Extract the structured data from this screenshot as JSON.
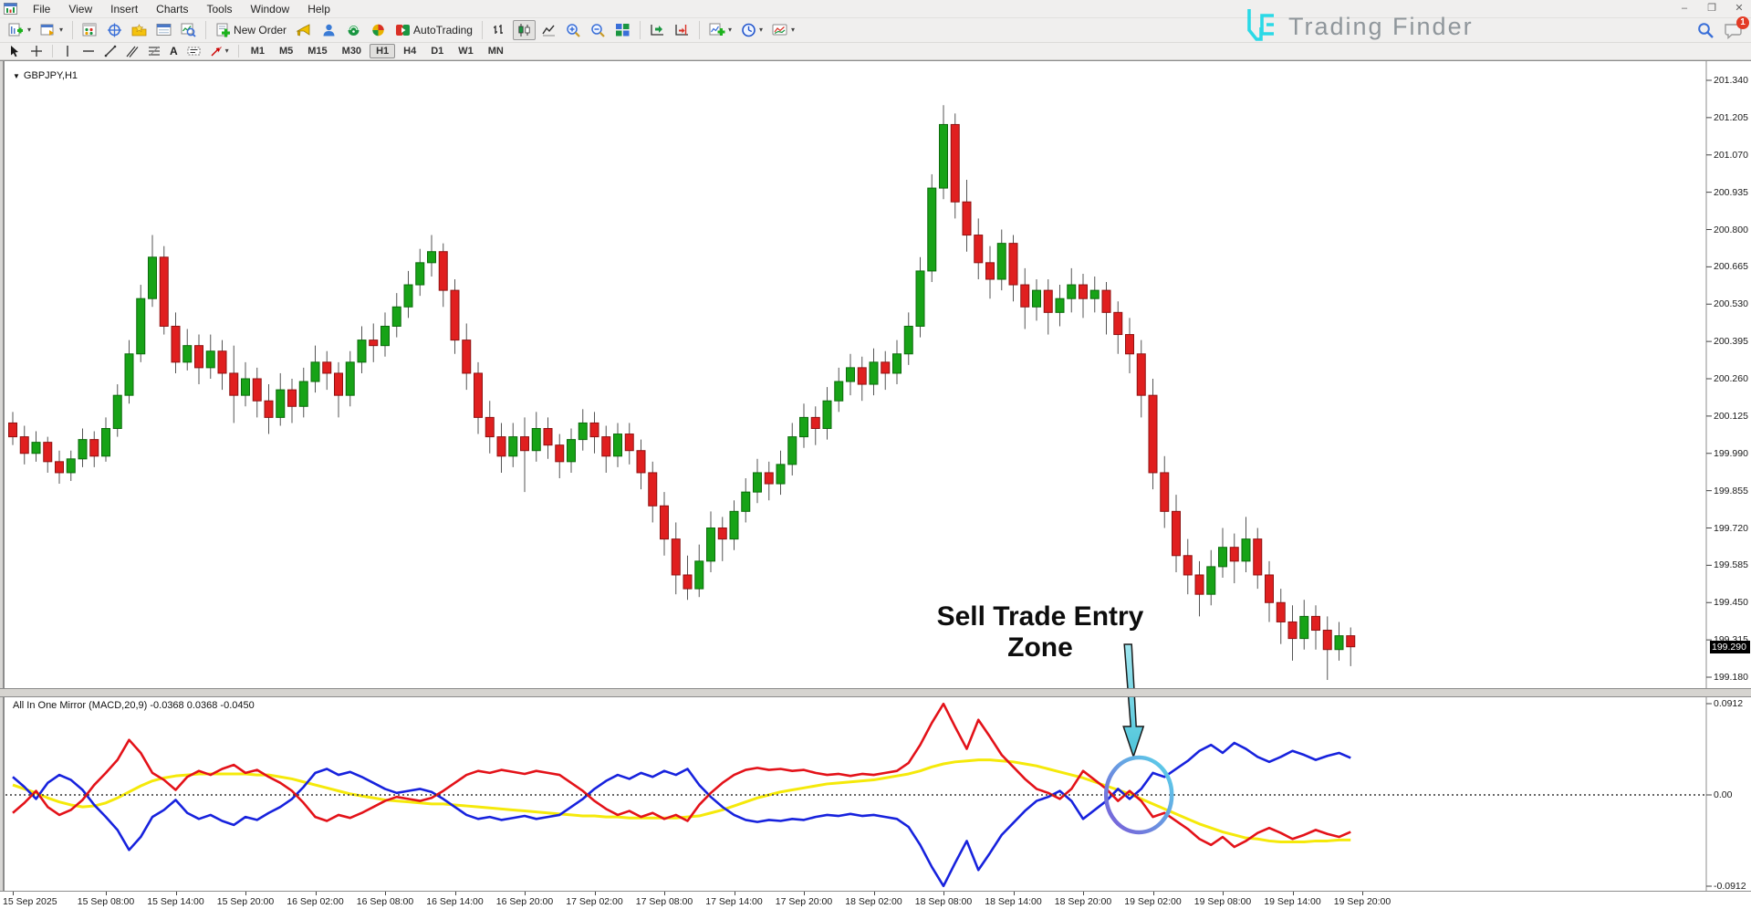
{
  "menu": {
    "items": [
      "File",
      "View",
      "Insert",
      "Charts",
      "Tools",
      "Window",
      "Help"
    ]
  },
  "window_controls": {
    "minimize": "–",
    "restore": "❐",
    "close": "✕"
  },
  "glyphs": {
    "dropdown": "▾",
    "symbol_marker": "▼",
    "text_tool": "A"
  },
  "toolbar": {
    "new_order": "New Order",
    "autotrading": "AutoTrading"
  },
  "timeframes": {
    "items": [
      "M1",
      "M5",
      "M15",
      "M30",
      "H1",
      "H4",
      "D1",
      "W1",
      "MN"
    ],
    "active": "H1"
  },
  "watermark": {
    "brand": "Trading Finder"
  },
  "notifications": {
    "badge": "1"
  },
  "chart": {
    "symbol_label": "GBPJPY,H1",
    "indicator_label": "All In One Mirror (MACD,20,9) -0.0368 0.0368 -0.0450",
    "current_price": "199.290",
    "annotation_text": "Sell Trade Entry Zone"
  },
  "colors": {
    "bull": "#17a317",
    "bull_border": "#0c6b0c",
    "bear": "#e01f1f",
    "bear_border": "#8f1212",
    "wick": "#555555",
    "macd_red": "#e31219",
    "macd_blue": "#1722dd",
    "signal_yellow": "#f5e90a",
    "arrow_cyan": "#74d6e6",
    "circle_purple": "#7a58d8",
    "circle_cyan": "#58d8ea",
    "badge_red": "#e33a24",
    "brand_cyan": "#2ad9e6"
  },
  "chart_data": {
    "type": "candlestick",
    "symbol": "GBPJPY",
    "timeframe": "H1",
    "price_panel": {
      "visible_price_range": [
        199.14,
        201.41
      ],
      "ohlc": [
        [
          200.1,
          200.14,
          200.02,
          200.05
        ],
        [
          200.05,
          200.09,
          199.95,
          199.99
        ],
        [
          199.99,
          200.07,
          199.96,
          200.03
        ],
        [
          200.03,
          200.05,
          199.92,
          199.96
        ],
        [
          199.96,
          200.0,
          199.88,
          199.92
        ],
        [
          199.92,
          200.0,
          199.89,
          199.97
        ],
        [
          199.97,
          200.08,
          199.94,
          200.04
        ],
        [
          200.04,
          200.07,
          199.94,
          199.98
        ],
        [
          199.98,
          200.12,
          199.96,
          200.08
        ],
        [
          200.08,
          200.24,
          200.05,
          200.2
        ],
        [
          200.2,
          200.4,
          200.17,
          200.35
        ],
        [
          200.35,
          200.6,
          200.32,
          200.55
        ],
        [
          200.55,
          200.78,
          200.52,
          200.7
        ],
        [
          200.7,
          200.74,
          200.42,
          200.45
        ],
        [
          200.45,
          200.5,
          200.28,
          200.32
        ],
        [
          200.32,
          200.44,
          200.29,
          200.38
        ],
        [
          200.38,
          200.42,
          200.24,
          200.3
        ],
        [
          200.3,
          200.42,
          200.26,
          200.36
        ],
        [
          200.36,
          200.4,
          200.22,
          200.28
        ],
        [
          200.28,
          200.38,
          200.1,
          200.2
        ],
        [
          200.2,
          200.32,
          200.16,
          200.26
        ],
        [
          200.26,
          200.3,
          200.12,
          200.18
        ],
        [
          200.18,
          200.24,
          200.06,
          200.12
        ],
        [
          200.12,
          200.28,
          200.09,
          200.22
        ],
        [
          200.22,
          200.26,
          200.1,
          200.16
        ],
        [
          200.16,
          200.3,
          200.12,
          200.25
        ],
        [
          200.25,
          200.38,
          200.21,
          200.32
        ],
        [
          200.32,
          200.36,
          200.22,
          200.28
        ],
        [
          200.28,
          200.32,
          200.12,
          200.2
        ],
        [
          200.2,
          200.36,
          200.16,
          200.32
        ],
        [
          200.32,
          200.45,
          200.28,
          200.4
        ],
        [
          200.4,
          200.46,
          200.32,
          200.38
        ],
        [
          200.38,
          200.5,
          200.34,
          200.45
        ],
        [
          200.45,
          200.57,
          200.41,
          200.52
        ],
        [
          200.52,
          200.65,
          200.48,
          200.6
        ],
        [
          200.6,
          200.73,
          200.56,
          200.68
        ],
        [
          200.68,
          200.78,
          200.63,
          200.72
        ],
        [
          200.72,
          200.75,
          200.52,
          200.58
        ],
        [
          200.58,
          200.62,
          200.35,
          200.4
        ],
        [
          200.4,
          200.46,
          200.22,
          200.28
        ],
        [
          200.28,
          200.32,
          200.06,
          200.12
        ],
        [
          200.12,
          200.18,
          199.99,
          200.05
        ],
        [
          200.05,
          200.1,
          199.92,
          199.98
        ],
        [
          199.98,
          200.1,
          199.94,
          200.05
        ],
        [
          200.05,
          200.12,
          199.85,
          200.0
        ],
        [
          200.0,
          200.14,
          199.96,
          200.08
        ],
        [
          200.08,
          200.12,
          199.97,
          200.02
        ],
        [
          200.02,
          200.06,
          199.9,
          199.96
        ],
        [
          199.96,
          200.08,
          199.92,
          200.04
        ],
        [
          200.04,
          200.15,
          200.0,
          200.1
        ],
        [
          200.1,
          200.14,
          199.99,
          200.05
        ],
        [
          200.05,
          200.09,
          199.92,
          199.98
        ],
        [
          199.98,
          200.1,
          199.94,
          200.06
        ],
        [
          200.06,
          200.1,
          199.95,
          200.0
        ],
        [
          200.0,
          200.04,
          199.86,
          199.92
        ],
        [
          199.92,
          199.96,
          199.74,
          199.8
        ],
        [
          199.8,
          199.85,
          199.62,
          199.68
        ],
        [
          199.68,
          199.74,
          199.48,
          199.55
        ],
        [
          199.55,
          199.62,
          199.46,
          199.5
        ],
        [
          199.5,
          199.66,
          199.47,
          199.6
        ],
        [
          199.6,
          199.78,
          199.56,
          199.72
        ],
        [
          199.72,
          199.76,
          199.6,
          199.68
        ],
        [
          199.68,
          199.82,
          199.64,
          199.78
        ],
        [
          199.78,
          199.9,
          199.74,
          199.85
        ],
        [
          199.85,
          199.97,
          199.81,
          199.92
        ],
        [
          199.92,
          199.96,
          199.82,
          199.88
        ],
        [
          199.88,
          200.0,
          199.84,
          199.95
        ],
        [
          199.95,
          200.1,
          199.91,
          200.05
        ],
        [
          200.05,
          200.17,
          200.01,
          200.12
        ],
        [
          200.12,
          200.16,
          200.02,
          200.08
        ],
        [
          200.08,
          200.23,
          200.04,
          200.18
        ],
        [
          200.18,
          200.3,
          200.14,
          200.25
        ],
        [
          200.25,
          200.35,
          200.2,
          200.3
        ],
        [
          200.3,
          200.34,
          200.18,
          200.24
        ],
        [
          200.24,
          200.37,
          200.2,
          200.32
        ],
        [
          200.32,
          200.36,
          200.22,
          200.28
        ],
        [
          200.28,
          200.4,
          200.24,
          200.35
        ],
        [
          200.35,
          200.5,
          200.31,
          200.45
        ],
        [
          200.45,
          200.7,
          200.41,
          200.65
        ],
        [
          200.65,
          201.0,
          200.61,
          200.95
        ],
        [
          200.95,
          201.25,
          200.91,
          201.18
        ],
        [
          201.18,
          201.22,
          200.84,
          200.9
        ],
        [
          200.9,
          200.98,
          200.72,
          200.78
        ],
        [
          200.78,
          200.84,
          200.62,
          200.68
        ],
        [
          200.68,
          200.74,
          200.55,
          200.62
        ],
        [
          200.62,
          200.8,
          200.58,
          200.75
        ],
        [
          200.75,
          200.78,
          200.54,
          200.6
        ],
        [
          200.6,
          200.66,
          200.44,
          200.52
        ],
        [
          200.52,
          200.62,
          200.47,
          200.58
        ],
        [
          200.58,
          200.62,
          200.42,
          200.5
        ],
        [
          200.5,
          200.6,
          200.45,
          200.55
        ],
        [
          200.55,
          200.66,
          200.5,
          200.6
        ],
        [
          200.6,
          200.64,
          200.48,
          200.55
        ],
        [
          200.55,
          200.63,
          200.5,
          200.58
        ],
        [
          200.58,
          200.61,
          200.42,
          200.5
        ],
        [
          200.5,
          200.54,
          200.35,
          200.42
        ],
        [
          200.42,
          200.48,
          200.28,
          200.35
        ],
        [
          200.35,
          200.4,
          200.12,
          200.2
        ],
        [
          200.2,
          200.26,
          199.86,
          199.92
        ],
        [
          199.92,
          199.98,
          199.72,
          199.78
        ],
        [
          199.78,
          199.84,
          199.56,
          199.62
        ],
        [
          199.62,
          199.68,
          199.48,
          199.55
        ],
        [
          199.55,
          199.6,
          199.4,
          199.48
        ],
        [
          199.48,
          199.64,
          199.44,
          199.58
        ],
        [
          199.58,
          199.72,
          199.54,
          199.65
        ],
        [
          199.65,
          199.7,
          199.52,
          199.6
        ],
        [
          199.6,
          199.76,
          199.56,
          199.68
        ],
        [
          199.68,
          199.72,
          199.5,
          199.55
        ],
        [
          199.55,
          199.6,
          199.38,
          199.45
        ],
        [
          199.45,
          199.5,
          199.3,
          199.38
        ],
        [
          199.38,
          199.44,
          199.24,
          199.32
        ],
        [
          199.32,
          199.46,
          199.28,
          199.4
        ],
        [
          199.4,
          199.44,
          199.28,
          199.35
        ],
        [
          199.35,
          199.4,
          199.17,
          199.28
        ],
        [
          199.28,
          199.38,
          199.24,
          199.33
        ],
        [
          199.33,
          199.36,
          199.22,
          199.29
        ]
      ]
    },
    "price_axis": {
      "ticks": [
        "201.340",
        "201.205",
        "201.070",
        "200.935",
        "200.800",
        "200.665",
        "200.530",
        "200.395",
        "200.260",
        "200.125",
        "199.990",
        "199.855",
        "199.720",
        "199.585",
        "199.450",
        "199.315",
        "199.180"
      ],
      "step": 0.135,
      "current": "199.290"
    },
    "time_axis": {
      "labels": [
        {
          "i": 0,
          "t": "15 Sep 2025"
        },
        {
          "i": 8,
          "t": "15 Sep 08:00"
        },
        {
          "i": 14,
          "t": "15 Sep 14:00"
        },
        {
          "i": 20,
          "t": "15 Sep 20:00"
        },
        {
          "i": 26,
          "t": "16 Sep 02:00"
        },
        {
          "i": 32,
          "t": "16 Sep 08:00"
        },
        {
          "i": 38,
          "t": "16 Sep 14:00"
        },
        {
          "i": 44,
          "t": "16 Sep 20:00"
        },
        {
          "i": 50,
          "t": "17 Sep 02:00"
        },
        {
          "i": 56,
          "t": "17 Sep 08:00"
        },
        {
          "i": 62,
          "t": "17 Sep 14:00"
        },
        {
          "i": 68,
          "t": "17 Sep 20:00"
        },
        {
          "i": 74,
          "t": "18 Sep 02:00"
        },
        {
          "i": 80,
          "t": "18 Sep 08:00"
        },
        {
          "i": 86,
          "t": "18 Sep 14:00"
        },
        {
          "i": 92,
          "t": "18 Sep 20:00"
        },
        {
          "i": 98,
          "t": "19 Sep 02:00"
        },
        {
          "i": 104,
          "t": "19 Sep 08:00"
        },
        {
          "i": 110,
          "t": "19 Sep 14:00"
        },
        {
          "i": 116,
          "t": "19 Sep 20:00"
        }
      ]
    },
    "indicator_panel": {
      "title": "All In One Mirror (MACD,20,9)",
      "current_values": [
        -0.0368,
        0.0368,
        -0.045
      ],
      "ylim": [
        -0.0912,
        0.0912
      ],
      "zero_line": "dotted",
      "axis_ticks": [
        {
          "v": 0.0912,
          "t": "0.0912"
        },
        {
          "v": 0,
          "t": "0.00"
        },
        {
          "v": -0.0912,
          "t": "-0.0912"
        }
      ],
      "series": [
        {
          "name": "macd_mirror_red",
          "color": "#e31219",
          "values": [
            -0.018,
            -0.008,
            0.004,
            -0.012,
            -0.02,
            -0.015,
            -0.005,
            0.01,
            0.022,
            0.035,
            0.055,
            0.042,
            0.022,
            0.015,
            0.005,
            0.018,
            0.024,
            0.02,
            0.026,
            0.03,
            0.022,
            0.025,
            0.018,
            0.012,
            0.004,
            -0.008,
            -0.022,
            -0.026,
            -0.02,
            -0.023,
            -0.018,
            -0.012,
            -0.006,
            -0.002,
            -0.004,
            -0.006,
            -0.003,
            0.004,
            0.012,
            0.02,
            0.024,
            0.022,
            0.025,
            0.023,
            0.021,
            0.024,
            0.022,
            0.02,
            0.012,
            0.004,
            -0.006,
            -0.014,
            -0.02,
            -0.016,
            -0.022,
            -0.018,
            -0.024,
            -0.02,
            -0.026,
            -0.01,
            0.002,
            0.012,
            0.02,
            0.025,
            0.027,
            0.025,
            0.026,
            0.024,
            0.025,
            0.022,
            0.02,
            0.021,
            0.019,
            0.021,
            0.02,
            0.022,
            0.024,
            0.032,
            0.05,
            0.072,
            0.091,
            0.068,
            0.046,
            0.075,
            0.058,
            0.04,
            0.028,
            0.016,
            0.006,
            0.002,
            -0.004,
            0.006,
            0.024,
            0.015,
            0.006,
            -0.006,
            0.004,
            -0.006,
            -0.022,
            -0.018,
            -0.026,
            -0.034,
            -0.044,
            -0.05,
            -0.042,
            -0.052,
            -0.046,
            -0.038,
            -0.033,
            -0.038,
            -0.044,
            -0.04,
            -0.035,
            -0.039,
            -0.042,
            -0.037
          ]
        },
        {
          "name": "macd_mirror_blue",
          "color": "#1722dd",
          "mirror_of": "macd_mirror_red"
        },
        {
          "name": "signal_yellow",
          "color": "#f5e90a",
          "values": [
            0.01,
            0.006,
            0.002,
            -0.003,
            -0.007,
            -0.01,
            -0.012,
            -0.011,
            -0.008,
            -0.003,
            0.003,
            0.009,
            0.014,
            0.017,
            0.019,
            0.02,
            0.021,
            0.021,
            0.021,
            0.021,
            0.021,
            0.02,
            0.02,
            0.018,
            0.016,
            0.013,
            0.01,
            0.007,
            0.004,
            0.001,
            -0.001,
            -0.003,
            -0.005,
            -0.006,
            -0.007,
            -0.008,
            -0.009,
            -0.009,
            -0.01,
            -0.011,
            -0.012,
            -0.013,
            -0.014,
            -0.015,
            -0.016,
            -0.017,
            -0.018,
            -0.019,
            -0.02,
            -0.021,
            -0.021,
            -0.022,
            -0.022,
            -0.023,
            -0.023,
            -0.023,
            -0.023,
            -0.023,
            -0.022,
            -0.021,
            -0.018,
            -0.015,
            -0.011,
            -0.007,
            -0.003,
            0.0,
            0.003,
            0.005,
            0.007,
            0.009,
            0.011,
            0.012,
            0.013,
            0.014,
            0.015,
            0.017,
            0.019,
            0.021,
            0.024,
            0.028,
            0.031,
            0.033,
            0.034,
            0.035,
            0.035,
            0.034,
            0.033,
            0.031,
            0.029,
            0.026,
            0.023,
            0.02,
            0.017,
            0.013,
            0.009,
            0.005,
            0.001,
            -0.004,
            -0.009,
            -0.014,
            -0.019,
            -0.024,
            -0.029,
            -0.033,
            -0.037,
            -0.04,
            -0.043,
            -0.044,
            -0.046,
            -0.047,
            -0.047,
            -0.047,
            -0.046,
            -0.046,
            -0.045,
            -0.045
          ]
        }
      ]
    },
    "annotations": [
      {
        "type": "label_arrow_circle",
        "text": "Sell Trade Entry Zone",
        "anchor_candle_index": 96.8,
        "anchor_value": 0
      }
    ]
  }
}
